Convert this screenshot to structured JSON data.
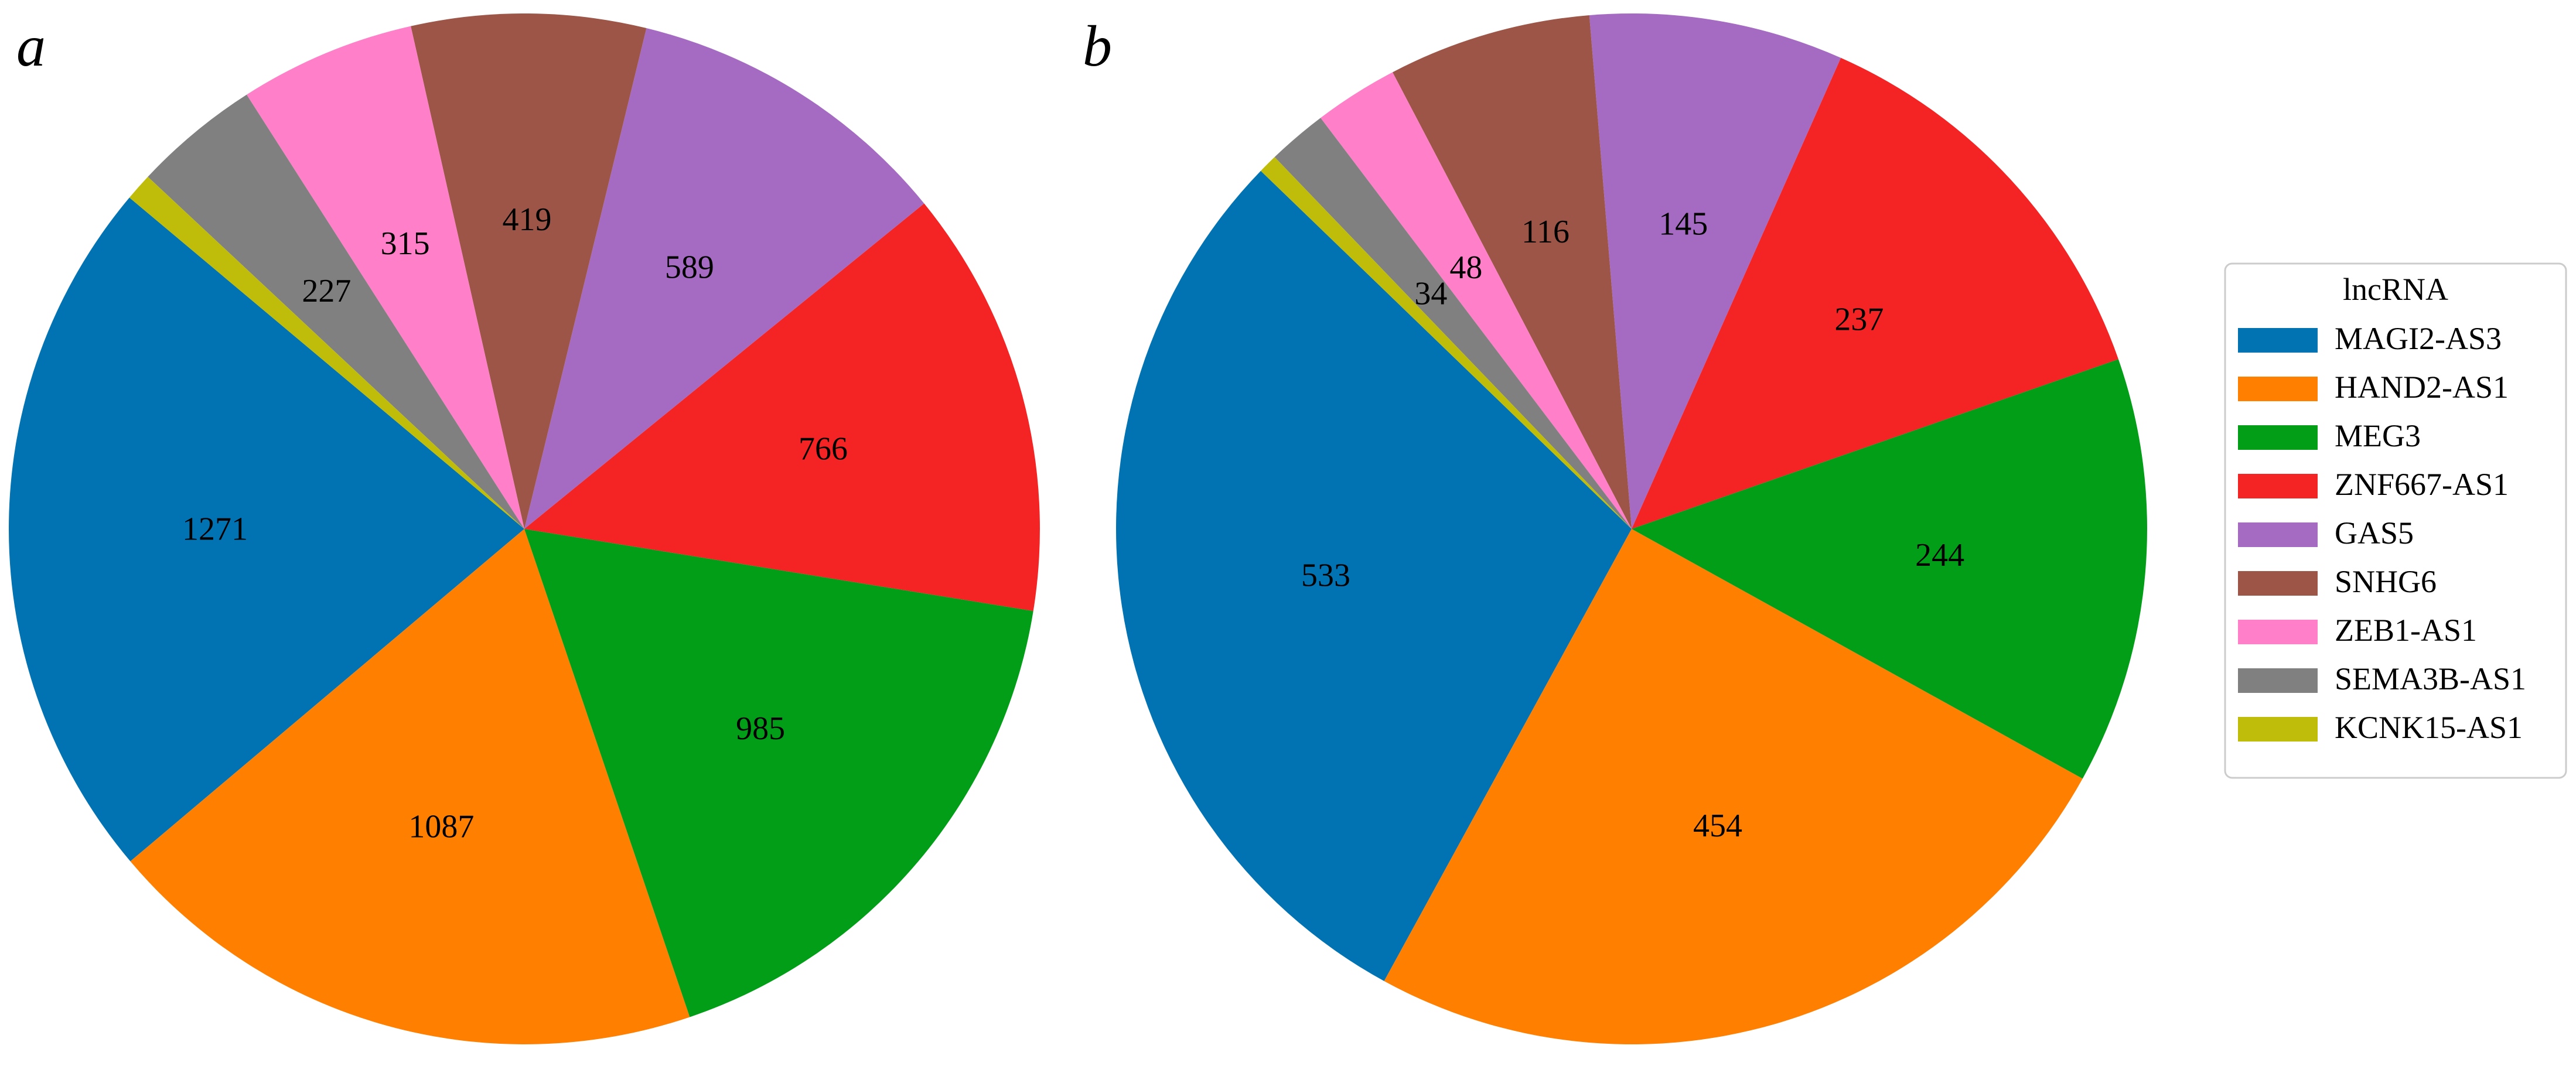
{
  "colors": {
    "MAGI2-AS3": "#0173b2",
    "HAND2-AS1": "#ff7f00",
    "MEG3": "#029e18",
    "ZNF667-AS1": "#f42424",
    "GAS5": "#a56bc2",
    "SNHG6": "#9c5547",
    "ZEB1-AS1": "#ff80c9",
    "SEMA3B-AS1": "#808080",
    "KCNK15-AS1": "#bfbd09"
  },
  "legend": {
    "title": "lncRNA",
    "items": [
      "MAGI2-AS3",
      "HAND2-AS1",
      "MEG3",
      "ZNF667-AS1",
      "GAS5",
      "SNHG6",
      "ZEB1-AS1",
      "SEMA3B-AS1",
      "KCNK15-AS1"
    ]
  },
  "chart_data": [
    {
      "type": "pie",
      "panel_label": "a",
      "categories": [
        "MAGI2-AS3",
        "HAND2-AS1",
        "MEG3",
        "ZNF667-AS1",
        "GAS5",
        "SNHG6",
        "ZEB1-AS1",
        "SEMA3B-AS1",
        "KCNK15-AS1"
      ],
      "values": [
        1271,
        1087,
        985,
        766,
        589,
        419,
        315,
        227,
        49
      ],
      "labels": [
        "1271",
        "1087",
        "985",
        "766",
        "589",
        "419",
        "315",
        "227",
        ""
      ],
      "start_angle_deg": 140,
      "direction": "counterclockwise"
    },
    {
      "type": "pie",
      "panel_label": "b",
      "categories": [
        "MAGI2-AS3",
        "HAND2-AS1",
        "MEG3",
        "ZNF667-AS1",
        "GAS5",
        "SNHG6",
        "ZEB1-AS1",
        "SEMA3B-AS1",
        "KCNK15-AS1"
      ],
      "values": [
        533,
        454,
        244,
        237,
        145,
        116,
        48,
        34,
        11
      ],
      "labels": [
        "533",
        "454",
        "244",
        "237",
        "145",
        "116",
        "48",
        "34",
        ""
      ],
      "start_angle_deg": 136,
      "direction": "counterclockwise"
    }
  ]
}
